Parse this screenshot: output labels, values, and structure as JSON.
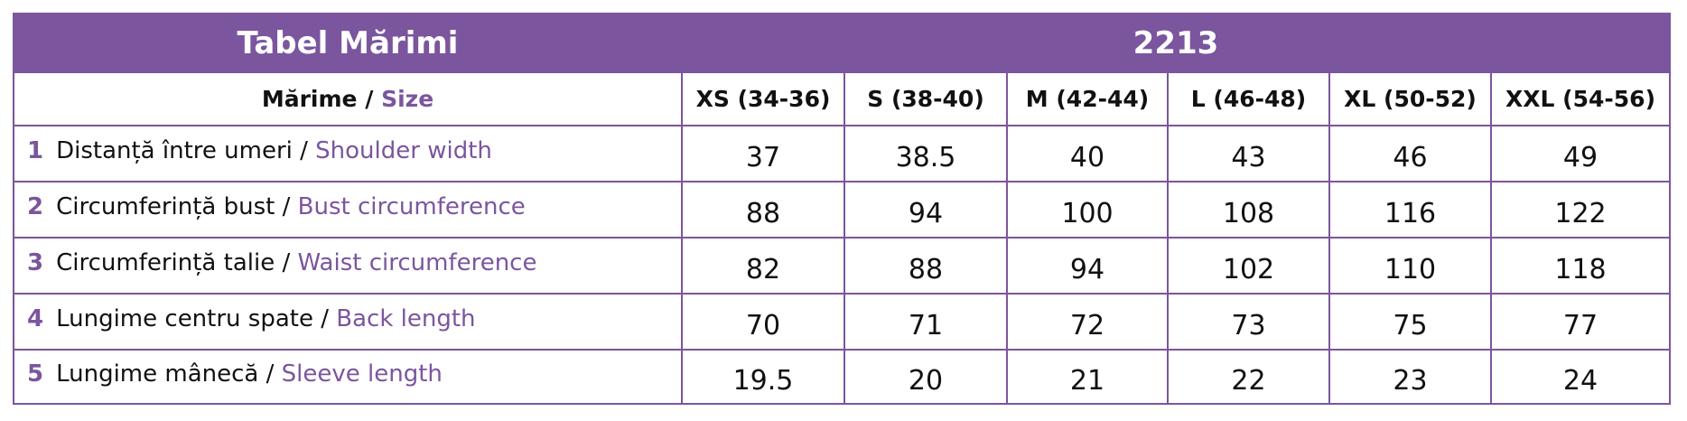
{
  "header": {
    "title": "Tabel Mărimi",
    "code": "2213"
  },
  "size_header": {
    "label_ro": "Mărime",
    "separator": "/",
    "label_en": "Size"
  },
  "sizes": [
    "XS (34-36)",
    "S (38-40)",
    "M (42-44)",
    "L (46-48)",
    "XL (50-52)",
    "XXL (54-56)"
  ],
  "rows": [
    {
      "number": "1",
      "label_ro": "Distanță între umeri",
      "separator": "/",
      "label_en": "Shoulder width",
      "values": [
        37,
        38.5,
        40,
        43,
        46,
        49
      ]
    },
    {
      "number": "2",
      "label_ro": "Circumferință bust",
      "separator": "/",
      "label_en": "Bust circumference",
      "values": [
        88,
        94,
        100,
        108,
        116,
        122
      ]
    },
    {
      "number": "3",
      "label_ro": "Circumferință talie",
      "separator": "/",
      "label_en": "Waist circumference",
      "values": [
        82,
        88,
        94,
        102,
        110,
        118
      ]
    },
    {
      "number": "4",
      "label_ro": "Lungime centru spate",
      "separator": "/",
      "label_en": "Back length",
      "values": [
        70,
        71,
        72,
        73,
        75,
        77
      ]
    },
    {
      "number": "5",
      "label_ro": "Lungime mânecă",
      "separator": "/",
      "label_en": "Sleeve length",
      "values": [
        19.5,
        20,
        21,
        22,
        23,
        24
      ]
    }
  ]
}
